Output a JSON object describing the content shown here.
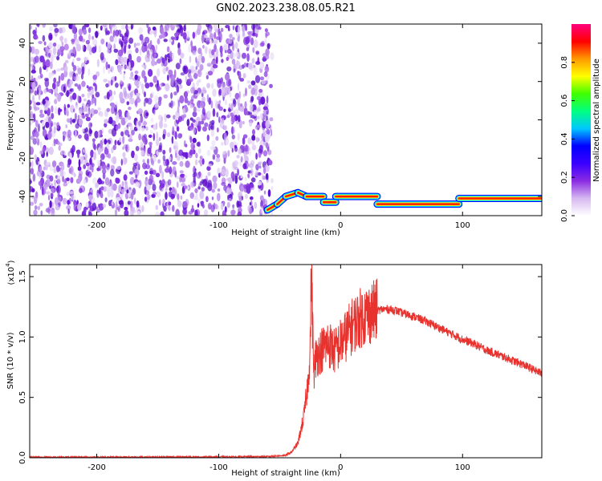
{
  "title": "GN02.2023.238.08.05.R21",
  "chart_data": [
    {
      "type": "heatmap",
      "xlabel": "Height of straight line (km)",
      "ylabel": "Frequency (Hz)",
      "xlim": [
        -255,
        165
      ],
      "ylim": [
        -50,
        50
      ],
      "x_ticks": [
        -200,
        -100,
        0,
        100
      ],
      "y_ticks": [
        -40,
        -20,
        0,
        20,
        40
      ],
      "x_tick_labels": [
        "-200",
        "-100",
        "0",
        "100"
      ],
      "y_tick_labels": [
        "-40",
        "-20",
        "0",
        "20",
        "40"
      ],
      "noise_region_x": [
        -255,
        -60
      ],
      "ridge": [
        {
          "x": [
            -60,
            -52
          ],
          "y": [
            -47,
            -44
          ]
        },
        {
          "x": [
            -52,
            -45
          ],
          "y": [
            -44,
            -40
          ]
        },
        {
          "x": [
            -45,
            -35
          ],
          "y": [
            -40,
            -38
          ]
        },
        {
          "x": [
            -35,
            -28
          ],
          "y": [
            -38,
            -40
          ]
        },
        {
          "x": [
            -28,
            -14
          ],
          "y": [
            -40,
            -40
          ]
        },
        {
          "x": [
            -14,
            -4
          ],
          "y": [
            -43,
            -43
          ]
        },
        {
          "x": [
            -4,
            30
          ],
          "y": [
            -40,
            -40
          ]
        },
        {
          "x": [
            30,
            97
          ],
          "y": [
            -44,
            -44
          ]
        },
        {
          "x": [
            97,
            165
          ],
          "y": [
            -41,
            -41
          ]
        }
      ],
      "colorbar": {
        "label": "Normalized spectral amplitude",
        "range": [
          0,
          1
        ],
        "ticks": [
          0.0,
          0.2,
          0.4,
          0.6,
          0.8
        ],
        "tick_labels": [
          "0.0",
          "0.2",
          "0.4",
          "0.6",
          "0.8"
        ],
        "colors": [
          "#ffffff",
          "#d6b8f0",
          "#8a2be2",
          "#3a00ff",
          "#0000ff",
          "#00c8ff",
          "#00ff80",
          "#40ff00",
          "#ffff00",
          "#ff9900",
          "#ff0000",
          "#ff0080"
        ]
      },
      "grid": false
    },
    {
      "type": "line",
      "xlabel": "Height of straight line (km)",
      "ylabel": "SNR (10 * v/v)",
      "y_multiplier_label": "(x10",
      "y_multiplier_exp": "4",
      "y_multiplier_close": ")",
      "xlim": [
        -255,
        165
      ],
      "ylim": [
        0,
        1.6
      ],
      "x_ticks": [
        -200,
        -100,
        0,
        100
      ],
      "y_ticks": [
        0.0,
        0.5,
        1.0,
        1.5
      ],
      "x_tick_labels": [
        "-200",
        "-100",
        "0",
        "100"
      ],
      "y_tick_labels": [
        "0.0",
        "0.5",
        "1.0",
        "1.5"
      ],
      "color": "#e8322e",
      "x": [
        -255,
        -200,
        -150,
        -100,
        -60,
        -45,
        -40,
        -35,
        -30,
        -27,
        -25,
        -24,
        -22,
        -20,
        -15,
        -10,
        -5,
        0,
        5,
        10,
        15,
        20,
        25,
        30,
        35,
        40,
        45,
        50,
        60,
        70,
        80,
        90,
        100,
        110,
        120,
        130,
        140,
        150,
        160,
        165
      ],
      "values": [
        0.005,
        0.005,
        0.006,
        0.007,
        0.01,
        0.02,
        0.05,
        0.12,
        0.35,
        0.6,
        0.9,
        1.55,
        0.7,
        0.85,
        0.9,
        0.95,
        0.88,
        0.95,
        1.02,
        1.1,
        1.15,
        1.18,
        1.2,
        1.22,
        1.23,
        1.23,
        1.22,
        1.2,
        1.17,
        1.13,
        1.08,
        1.03,
        0.98,
        0.94,
        0.89,
        0.85,
        0.81,
        0.77,
        0.72,
        0.7
      ],
      "grid": false
    }
  ]
}
